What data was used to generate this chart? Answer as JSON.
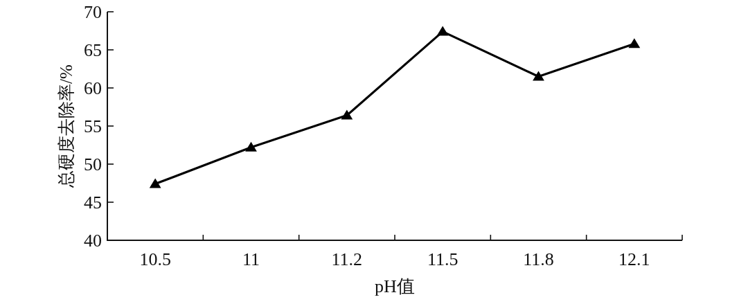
{
  "chart_data": {
    "type": "line",
    "xlabel": "pH值",
    "ylabel": "总硬度去除率/%",
    "categories": [
      "10.5",
      "11",
      "11.2",
      "11.5",
      "11.8",
      "12.1"
    ],
    "series": [
      {
        "color": "#000000",
        "values": [
          47.4,
          52.2,
          56.4,
          67.4,
          61.5,
          65.8
        ]
      }
    ],
    "ylim": [
      40,
      70
    ],
    "yticks": [
      40,
      45,
      50,
      55,
      60,
      65,
      70
    ],
    "marker": "triangle",
    "line_style": "solid",
    "grid": false
  }
}
